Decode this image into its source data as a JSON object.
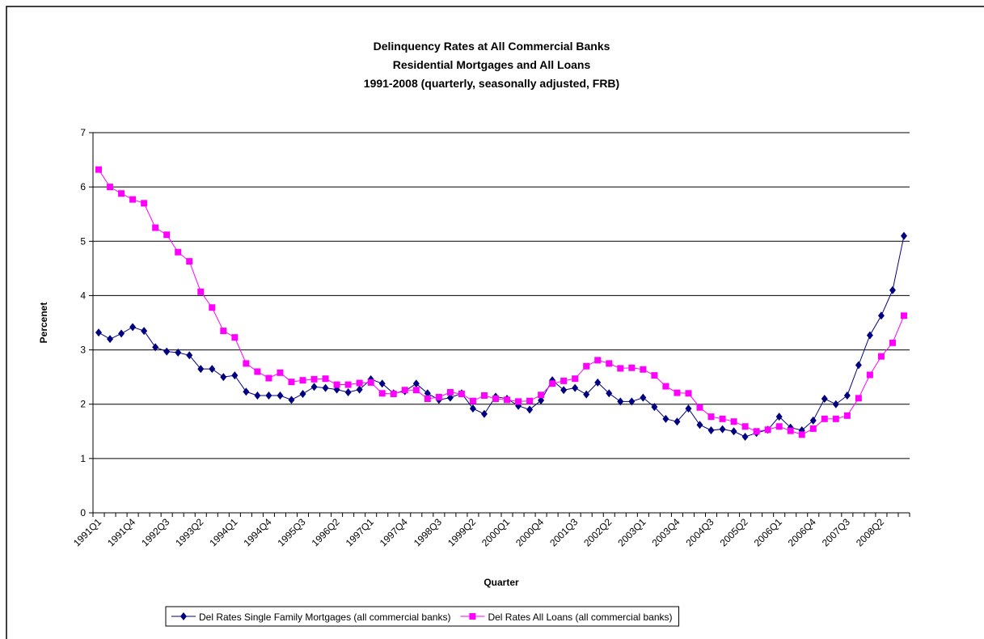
{
  "chart_data": {
    "type": "line",
    "title": [
      "Delinquency Rates at All Commercial Banks",
      "Residential Mortgages and All Loans",
      "1991-2008 (quarterly, seasonally adjusted, FRB)"
    ],
    "xlabel": "Quarter",
    "ylabel": "Percenet",
    "categories": [
      "1991Q1",
      null,
      null,
      "1991Q4",
      null,
      null,
      "1992Q3",
      null,
      null,
      "1993Q2",
      null,
      null,
      "1994Q1",
      null,
      null,
      "1994Q4",
      null,
      null,
      "1995Q3",
      null,
      null,
      "1996Q2",
      null,
      null,
      "1997Q1",
      null,
      null,
      "1997Q4",
      null,
      null,
      "1998Q3",
      null,
      null,
      "1999Q2",
      null,
      null,
      "2000Q1",
      null,
      null,
      "2000Q4",
      null,
      null,
      "2001Q3",
      null,
      null,
      "2002Q2",
      null,
      null,
      "2003Q1",
      null,
      null,
      "2003Q4",
      null,
      null,
      "2004Q3",
      null,
      null,
      "2005Q2",
      null,
      null,
      "2006Q1",
      null,
      null,
      "2006Q4",
      null,
      null,
      "2007Q3",
      null,
      null,
      "2008Q2",
      null,
      null
    ],
    "series": [
      {
        "name": "Del Rates Single Family Mortgages (all commercial banks)",
        "color": "#000080",
        "marker": "diamond",
        "values": [
          3.32,
          3.2,
          3.3,
          3.42,
          3.35,
          3.05,
          2.97,
          2.95,
          2.9,
          2.65,
          2.65,
          2.5,
          2.53,
          2.23,
          2.16,
          2.16,
          2.16,
          2.08,
          2.19,
          2.32,
          2.3,
          2.27,
          2.22,
          2.27,
          2.46,
          2.38,
          2.2,
          2.24,
          2.38,
          2.2,
          2.08,
          2.12,
          2.2,
          1.92,
          1.82,
          2.14,
          2.1,
          1.97,
          1.9,
          2.07,
          2.44,
          2.26,
          2.3,
          2.18,
          2.4,
          2.2,
          2.05,
          2.05,
          2.12,
          1.95,
          1.73,
          1.68,
          1.92,
          1.62,
          1.52,
          1.54,
          1.5,
          1.4,
          1.47,
          1.53,
          1.77,
          1.57,
          1.52,
          1.7,
          2.1,
          2.0,
          2.16,
          2.72,
          3.27,
          3.63,
          4.1,
          5.1
        ]
      },
      {
        "name": "Del Rates All Loans (all commercial banks)",
        "color": "#ff00ff",
        "marker": "square",
        "values": [
          6.32,
          6.0,
          5.88,
          5.77,
          5.7,
          5.25,
          5.12,
          4.8,
          4.63,
          4.07,
          3.78,
          3.35,
          3.23,
          2.75,
          2.6,
          2.48,
          2.58,
          2.41,
          2.44,
          2.46,
          2.47,
          2.36,
          2.36,
          2.39,
          2.4,
          2.2,
          2.19,
          2.26,
          2.26,
          2.1,
          2.13,
          2.22,
          2.19,
          2.06,
          2.16,
          2.1,
          2.08,
          2.05,
          2.06,
          2.17,
          2.38,
          2.43,
          2.47,
          2.7,
          2.81,
          2.75,
          2.66,
          2.67,
          2.64,
          2.53,
          2.33,
          2.21,
          2.2,
          1.94,
          1.77,
          1.73,
          1.68,
          1.59,
          1.5,
          1.53,
          1.59,
          1.51,
          1.44,
          1.55,
          1.73,
          1.73,
          1.79,
          2.11,
          2.54,
          2.88,
          3.13,
          3.63
        ]
      }
    ],
    "ylim": [
      0,
      7
    ],
    "yticks": [
      0,
      1,
      2,
      3,
      4,
      5,
      6,
      7
    ],
    "grid": true,
    "legend": "bottom"
  }
}
